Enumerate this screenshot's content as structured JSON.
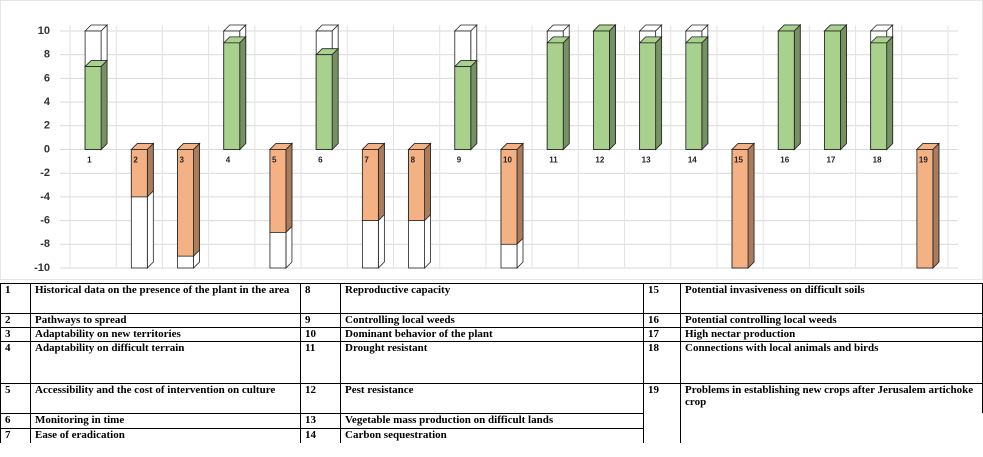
{
  "chart_data": {
    "type": "bar",
    "categories": [
      "1",
      "2",
      "3",
      "4",
      "5",
      "6",
      "7",
      "8",
      "9",
      "10",
      "11",
      "12",
      "13",
      "14",
      "15",
      "16",
      "17",
      "18",
      "19"
    ],
    "values": [
      7,
      -4,
      -9,
      9,
      -7,
      8,
      -6,
      -6,
      7,
      -8,
      9,
      10,
      9,
      9,
      -10,
      10,
      10,
      9,
      -10
    ],
    "color": "#a9d18e",
    "negative_color": "#f4b183",
    "ylim": [
      -10,
      10
    ],
    "yticks": [
      -10,
      -8,
      -6,
      -4,
      -2,
      0,
      2,
      4,
      6,
      8,
      10
    ],
    "grid": true
  },
  "table": {
    "columns": [
      [
        {
          "num": 1,
          "text": "Historical data on the presence of the plant in the area"
        },
        {
          "num": 2,
          "text": "Pathways to spread"
        },
        {
          "num": 3,
          "text": "Adaptability on new territories"
        },
        {
          "num": 4,
          "text": "Adaptability on difficult terrain"
        },
        {
          "num": 5,
          "text": "Accessibility and the cost of intervention on culture"
        },
        {
          "num": 6,
          "text": "Monitoring in time"
        },
        {
          "num": 7,
          "text": "Ease of eradication"
        }
      ],
      [
        {
          "num": 8,
          "text": "Reproductive capacity"
        },
        {
          "num": 9,
          "text": "Controlling local weeds"
        },
        {
          "num": 10,
          "text": "Dominant behavior of the plant"
        },
        {
          "num": 11,
          "text": "Drought resistant"
        },
        {
          "num": 12,
          "text": "Pest resistance"
        },
        {
          "num": 13,
          "text": "Vegetable mass production on difficult lands"
        },
        {
          "num": 14,
          "text": "Carbon sequestration"
        }
      ],
      [
        {
          "num": 15,
          "text": "Potential invasiveness on difficult soils"
        },
        {
          "num": 16,
          "text": "Potential controlling local weeds"
        },
        {
          "num": 17,
          "text": "High nectar production"
        },
        {
          "num": 18,
          "text": "Connections with local animals and birds"
        },
        {
          "num": 19,
          "text": "Problems in establishing new crops after Jerusalem artichoke crop"
        }
      ]
    ]
  }
}
